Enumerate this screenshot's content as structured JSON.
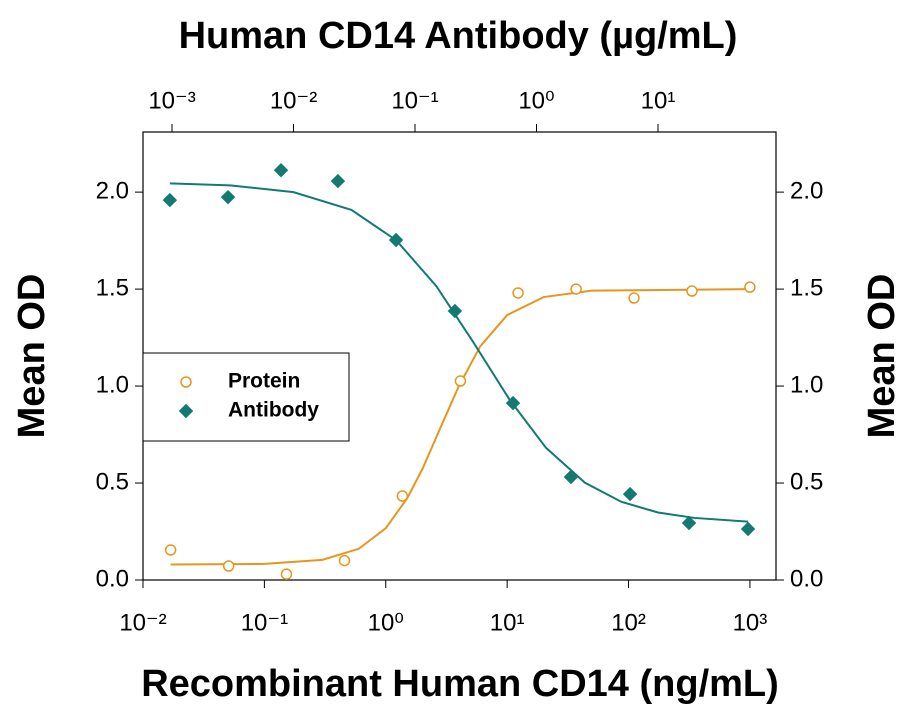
{
  "chart_data": {
    "type": "scatter",
    "x2label": "Human CD14 Antibody (µg/mL)",
    "xlabel": "Recombinant Human CD14 (ng/mL)",
    "ylabel": "Mean OD",
    "y2label": "Mean OD",
    "xscale": "log",
    "x2scale": "log",
    "xlim": [
      0.01,
      1640
    ],
    "x2lim": [
      0.000577,
      93.6
    ],
    "ylim": [
      0,
      2.31
    ],
    "y2lim": [
      0,
      2.31
    ],
    "xticks": [
      {
        "value": 0.01,
        "label": "10⁻²"
      },
      {
        "value": 0.1,
        "label": "10⁻¹"
      },
      {
        "value": 1,
        "label": "10⁰"
      },
      {
        "value": 10,
        "label": "10¹"
      },
      {
        "value": 100,
        "label": "10²"
      },
      {
        "value": 1000,
        "label": "10³"
      }
    ],
    "x2ticks": [
      {
        "value": 0.001,
        "label": "10⁻³"
      },
      {
        "value": 0.01,
        "label": "10⁻²"
      },
      {
        "value": 0.1,
        "label": "10⁻¹"
      },
      {
        "value": 1,
        "label": "10⁰"
      },
      {
        "value": 10,
        "label": "10¹"
      }
    ],
    "yticks": [
      {
        "value": 0,
        "label": "0.0"
      },
      {
        "value": 0.5,
        "label": "0.5"
      },
      {
        "value": 1,
        "label": "1.0"
      },
      {
        "value": 1.5,
        "label": "1.5"
      },
      {
        "value": 2,
        "label": "2.0"
      }
    ],
    "y2ticks": [
      {
        "value": 0,
        "label": "0.0"
      },
      {
        "value": 0.5,
        "label": "0.5"
      },
      {
        "value": 1,
        "label": "1.0"
      },
      {
        "value": 1.5,
        "label": "1.5"
      },
      {
        "value": 2,
        "label": "2.0"
      }
    ],
    "legend": "center left",
    "series": [
      {
        "name": "Protein",
        "color": "#e6961e",
        "marker": "circle",
        "x": [
          0.0169,
          0.0508,
          0.152,
          0.457,
          1.37,
          4.12,
          12.3,
          37,
          111,
          333,
          1000
        ],
        "values": [
          0.155,
          0.072,
          0.03,
          0.1,
          0.433,
          1.026,
          1.48,
          1.5,
          1.454,
          1.49,
          1.51
        ],
        "fit_x": [
          0.0169,
          0.1,
          0.3,
          0.6,
          1,
          1.5,
          2,
          3,
          4,
          6,
          10,
          20,
          50,
          1000
        ],
        "fit_values": [
          0.08,
          0.083,
          0.104,
          0.161,
          0.267,
          0.421,
          0.571,
          0.823,
          1.0,
          1.205,
          1.366,
          1.459,
          1.492,
          1.5
        ]
      },
      {
        "name": "Antibody",
        "color": "#137a73",
        "marker": "diamond",
        "axis": "x2",
        "x": [
          0.00096,
          0.00289,
          0.00789,
          0.0232,
          0.0698,
          0.213,
          0.641,
          1.92,
          5.89,
          18.0,
          55.1
        ],
        "values": [
          1.959,
          1.974,
          2.113,
          2.057,
          1.753,
          1.387,
          0.912,
          0.531,
          0.443,
          0.294,
          0.263
        ],
        "fit_x": [
          0.00096,
          0.003,
          0.01,
          0.03,
          0.07,
          0.15,
          0.3,
          0.6,
          1.2,
          2.5,
          5,
          10,
          20,
          55
        ],
        "fit_values": [
          2.045,
          2.035,
          2.0,
          1.908,
          1.752,
          1.515,
          1.229,
          0.93,
          0.681,
          0.502,
          0.403,
          0.348,
          0.32,
          0.301
        ]
      }
    ]
  }
}
